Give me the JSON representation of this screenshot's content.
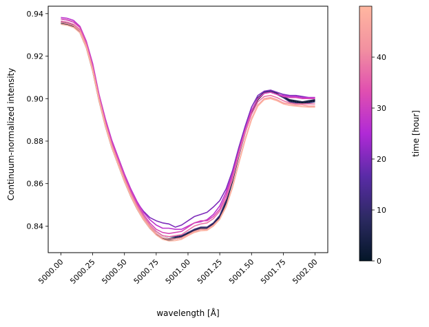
{
  "chart_data": {
    "type": "line",
    "xlabel": "wavelength [Å]",
    "ylabel": "Continuum-normalized intensity",
    "xlim": [
      4999.9,
      5002.1
    ],
    "ylim": [
      0.8275,
      0.9435
    ],
    "xticks": [
      5000.0,
      5000.25,
      5000.5,
      5000.75,
      5001.0,
      5001.25,
      5001.5,
      5001.75,
      5002.0
    ],
    "xtick_labels": [
      "5000.00",
      "5000.25",
      "5000.50",
      "5000.75",
      "5001.00",
      "5001.25",
      "5001.50",
      "5001.75",
      "5002.00"
    ],
    "yticks": [
      0.84,
      0.86,
      0.88,
      0.9,
      0.92,
      0.94
    ],
    "ytick_labels": [
      "0.84",
      "0.86",
      "0.88",
      "0.90",
      "0.92",
      "0.94"
    ],
    "x": [
      5000.0,
      5000.05,
      5000.1,
      5000.15,
      5000.2,
      5000.25,
      5000.3,
      5000.35,
      5000.4,
      5000.45,
      5000.5,
      5000.55,
      5000.6,
      5000.65,
      5000.7,
      5000.75,
      5000.8,
      5000.85,
      5000.9,
      5000.95,
      5001.0,
      5001.05,
      5001.1,
      5001.15,
      5001.2,
      5001.25,
      5001.3,
      5001.35,
      5001.4,
      5001.45,
      5001.5,
      5001.55,
      5001.6,
      5001.65,
      5001.7,
      5001.75,
      5001.8,
      5001.85,
      5001.9,
      5001.95,
      5002.0
    ],
    "series": [
      {
        "time": 0,
        "values": [
          0.9355,
          0.935,
          0.934,
          0.931,
          0.924,
          0.913,
          0.899,
          0.887,
          0.877,
          0.869,
          0.861,
          0.854,
          0.848,
          0.843,
          0.839,
          0.836,
          0.834,
          0.8335,
          0.834,
          0.8345,
          0.8365,
          0.8375,
          0.8385,
          0.8385,
          0.8405,
          0.844,
          0.851,
          0.861,
          0.873,
          0.884,
          0.893,
          0.8995,
          0.9025,
          0.903,
          0.902,
          0.9005,
          0.899,
          0.8985,
          0.898,
          0.8985,
          0.899
        ]
      },
      {
        "time": 5,
        "values": [
          0.9357,
          0.9352,
          0.9342,
          0.9315,
          0.9245,
          0.9132,
          0.8992,
          0.8875,
          0.8775,
          0.8695,
          0.8615,
          0.8545,
          0.8485,
          0.8435,
          0.8395,
          0.8365,
          0.8345,
          0.834,
          0.8345,
          0.835,
          0.837,
          0.838,
          0.839,
          0.839,
          0.841,
          0.8445,
          0.8515,
          0.8615,
          0.8735,
          0.8845,
          0.8935,
          0.9,
          0.903,
          0.9035,
          0.9025,
          0.901,
          0.8995,
          0.899,
          0.8985,
          0.899,
          0.8995
        ]
      },
      {
        "time": 10,
        "values": [
          0.936,
          0.9355,
          0.9345,
          0.932,
          0.925,
          0.914,
          0.9,
          0.888,
          0.878,
          0.87,
          0.862,
          0.855,
          0.8495,
          0.8445,
          0.8405,
          0.8375,
          0.8355,
          0.835,
          0.835,
          0.8355,
          0.837,
          0.8385,
          0.8395,
          0.8395,
          0.8415,
          0.845,
          0.852,
          0.862,
          0.874,
          0.885,
          0.894,
          0.9005,
          0.903,
          0.9035,
          0.902,
          0.9005,
          0.8985,
          0.898,
          0.8975,
          0.898,
          0.8985
        ]
      },
      {
        "time": 20,
        "values": [
          0.9375,
          0.937,
          0.936,
          0.9335,
          0.9265,
          0.9155,
          0.9015,
          0.8895,
          0.8795,
          0.8715,
          0.8635,
          0.8565,
          0.851,
          0.847,
          0.844,
          0.8425,
          0.8415,
          0.841,
          0.8395,
          0.8405,
          0.8425,
          0.8445,
          0.8455,
          0.8465,
          0.849,
          0.852,
          0.8575,
          0.866,
          0.877,
          0.887,
          0.896,
          0.9015,
          0.9035,
          0.904,
          0.903,
          0.902,
          0.9015,
          0.9015,
          0.901,
          0.9005,
          0.9005
        ]
      },
      {
        "time": 27,
        "values": [
          0.9382,
          0.9378,
          0.9368,
          0.934,
          0.927,
          0.9165,
          0.902,
          0.8905,
          0.8805,
          0.8725,
          0.8645,
          0.8575,
          0.8515,
          0.8465,
          0.843,
          0.8405,
          0.839,
          0.839,
          0.8385,
          0.8385,
          0.84,
          0.8415,
          0.842,
          0.843,
          0.8455,
          0.8495,
          0.856,
          0.8645,
          0.8755,
          0.8855,
          0.8945,
          0.9,
          0.9025,
          0.903,
          0.902,
          0.9015,
          0.901,
          0.901,
          0.9005,
          0.9005,
          0.9005
        ]
      },
      {
        "time": 32,
        "values": [
          0.9375,
          0.937,
          0.936,
          0.9335,
          0.9265,
          0.9155,
          0.9015,
          0.8895,
          0.8795,
          0.8715,
          0.8635,
          0.8565,
          0.8505,
          0.8455,
          0.8415,
          0.8385,
          0.837,
          0.8365,
          0.837,
          0.8375,
          0.8395,
          0.8415,
          0.8425,
          0.8425,
          0.8445,
          0.848,
          0.8545,
          0.8635,
          0.875,
          0.885,
          0.894,
          0.9,
          0.9025,
          0.903,
          0.902,
          0.901,
          0.9005,
          0.9005,
          0.9,
          0.9,
          0.9
        ]
      },
      {
        "time": 38,
        "values": [
          0.9365,
          0.936,
          0.935,
          0.9325,
          0.9255,
          0.9145,
          0.9005,
          0.8885,
          0.8785,
          0.8705,
          0.8625,
          0.8555,
          0.8495,
          0.8445,
          0.8405,
          0.8375,
          0.8355,
          0.835,
          0.8355,
          0.836,
          0.838,
          0.84,
          0.841,
          0.8415,
          0.8435,
          0.847,
          0.853,
          0.862,
          0.8735,
          0.884,
          0.8925,
          0.8985,
          0.901,
          0.9015,
          0.9005,
          0.899,
          0.898,
          0.8975,
          0.8975,
          0.8975,
          0.8975
        ]
      },
      {
        "time": 44,
        "values": [
          0.9358,
          0.9353,
          0.9343,
          0.9318,
          0.9248,
          0.9138,
          0.8998,
          0.8878,
          0.8778,
          0.8698,
          0.8618,
          0.8548,
          0.8488,
          0.8438,
          0.8398,
          0.8365,
          0.8345,
          0.8338,
          0.834,
          0.8345,
          0.836,
          0.8375,
          0.8385,
          0.8385,
          0.8405,
          0.8435,
          0.8495,
          0.8585,
          0.87,
          0.881,
          0.8905,
          0.897,
          0.9,
          0.9005,
          0.8995,
          0.898,
          0.8975,
          0.897,
          0.897,
          0.8965,
          0.8965
        ]
      },
      {
        "time": 49,
        "values": [
          0.935,
          0.9345,
          0.9335,
          0.931,
          0.924,
          0.913,
          0.899,
          0.887,
          0.877,
          0.869,
          0.861,
          0.854,
          0.848,
          0.843,
          0.839,
          0.8358,
          0.8338,
          0.833,
          0.8332,
          0.8338,
          0.8355,
          0.837,
          0.8378,
          0.838,
          0.84,
          0.8432,
          0.849,
          0.858,
          0.8695,
          0.8805,
          0.89,
          0.8965,
          0.8995,
          0.9,
          0.899,
          0.8975,
          0.8968,
          0.8965,
          0.8962,
          0.896,
          0.896
        ]
      }
    ],
    "colorbar": {
      "label": "time [hour]",
      "range": [
        0,
        50
      ],
      "ticks": [
        0,
        10,
        20,
        30,
        40
      ],
      "tick_labels": [
        "0",
        "10",
        "20",
        "30",
        "40"
      ],
      "colormap": "magma-pink",
      "stops": [
        "#041628",
        "#2c2a62",
        "#5a2ba7",
        "#b02ad6",
        "#e04fb0",
        "#f291a0",
        "#ffb7a0"
      ]
    }
  }
}
